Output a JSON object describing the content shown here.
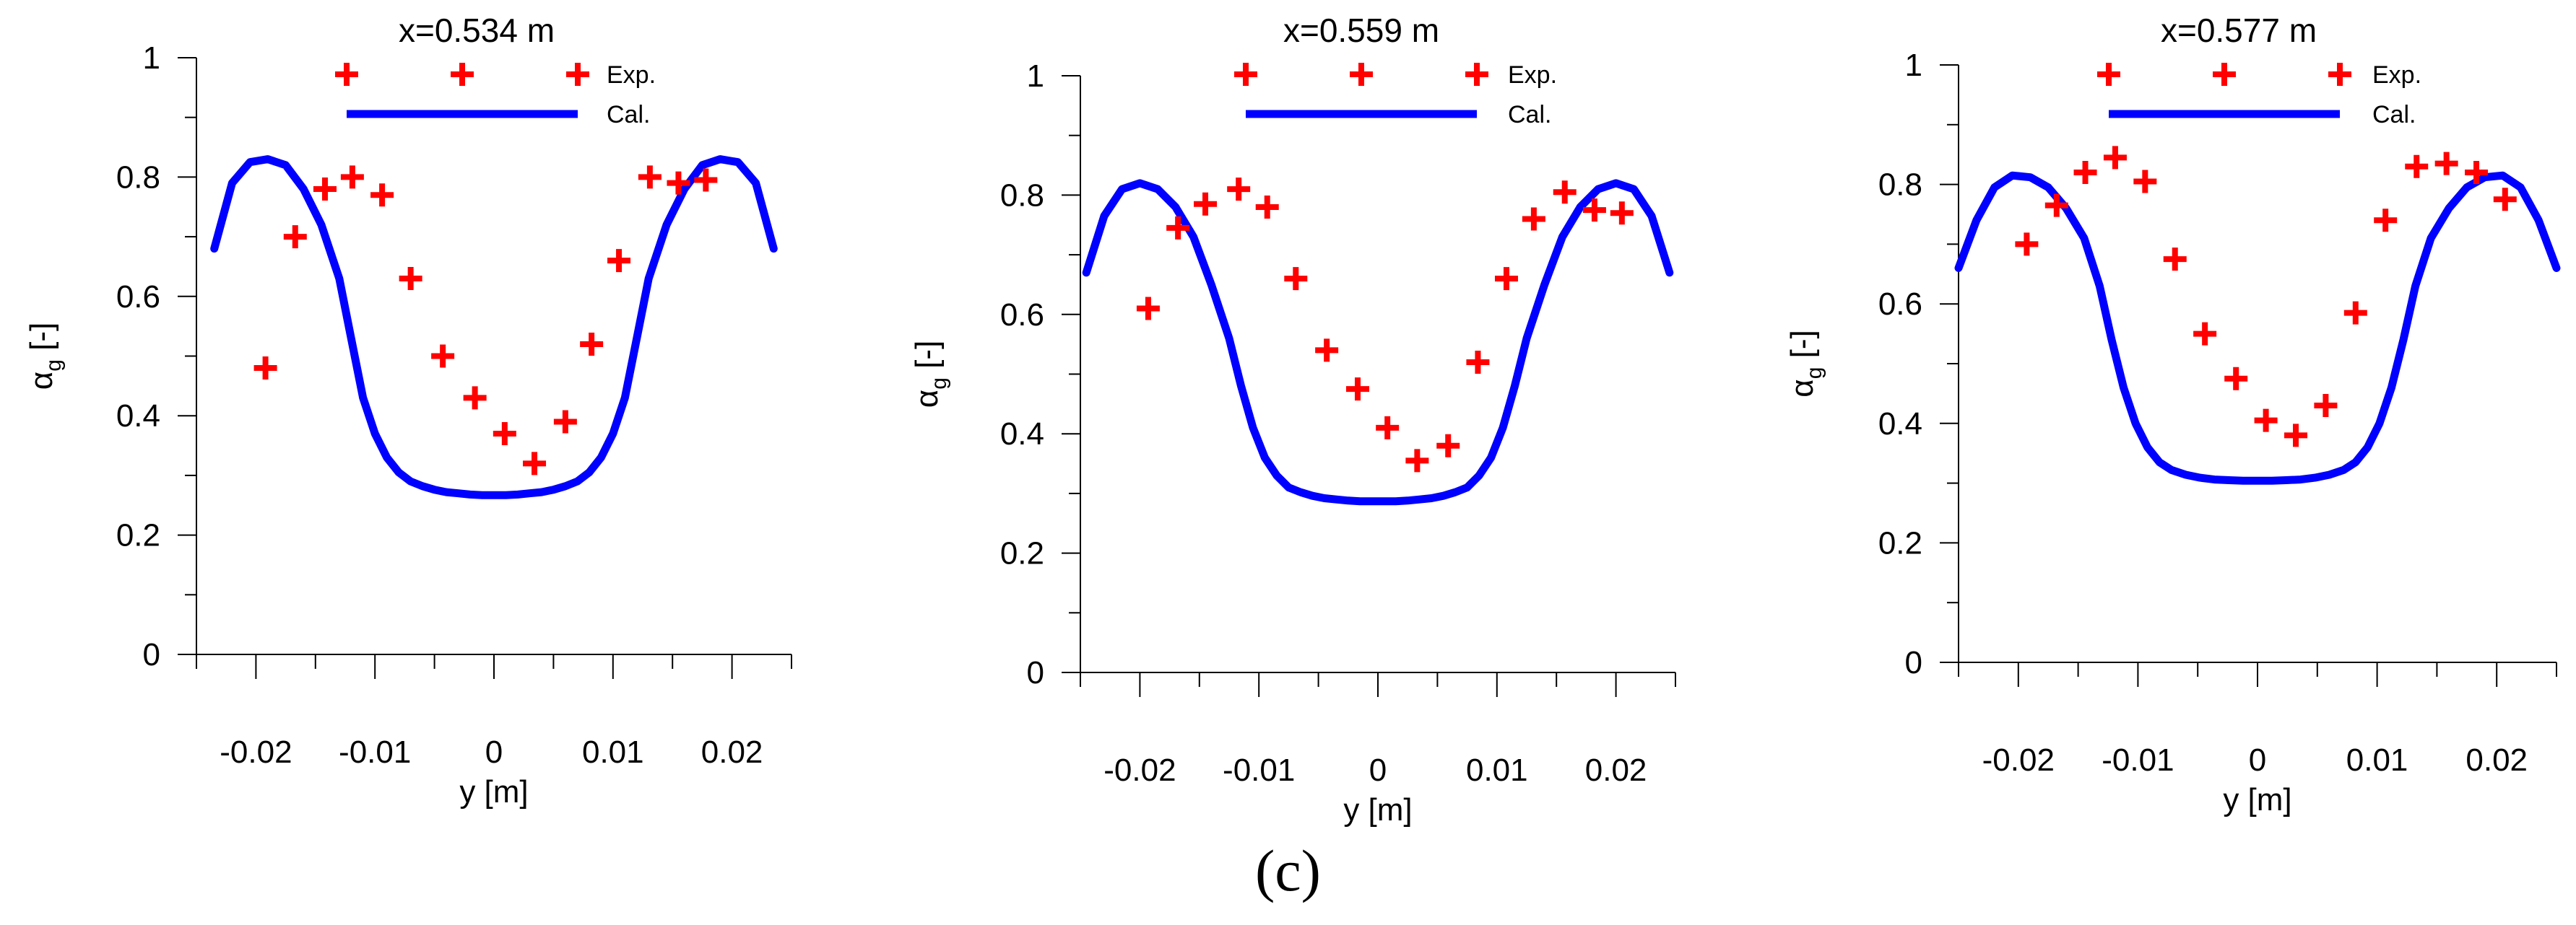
{
  "figure_label": "(c)",
  "chart_data": [
    {
      "type": "line+scatter",
      "title": "x=0.534 m",
      "xlabel": "y [m]",
      "ylabel_symbol": "α",
      "ylabel_subscript": "g",
      "ylabel_unit": "[-]",
      "xlim": [
        -0.025,
        0.025
      ],
      "ylim": [
        0,
        1
      ],
      "xticks": [
        "-0.02",
        "-0.01",
        "0",
        "0.01",
        "0.02"
      ],
      "yticks": [
        "0",
        "0.2",
        "0.4",
        "0.6",
        "0.8",
        "1"
      ],
      "legend": {
        "exp_label": "Exp.",
        "cal_label": "Cal.",
        "placement": "top-center"
      },
      "series": [
        {
          "name": "Exp.",
          "marker": "plus",
          "color": "#ff0000",
          "x": [
            -0.0192,
            -0.0167,
            -0.0142,
            -0.0119,
            -0.0094,
            -0.007,
            -0.0043,
            -0.0016,
            0.0009,
            0.0034,
            0.006,
            0.0082,
            0.0105,
            0.0131,
            0.0155,
            0.0178
          ],
          "y": [
            0.48,
            0.7,
            0.78,
            0.8,
            0.77,
            0.63,
            0.5,
            0.43,
            0.37,
            0.32,
            0.39,
            0.52,
            0.66,
            0.8,
            0.79,
            0.795
          ]
        },
        {
          "name": "Cal.",
          "marker": "line",
          "color": "#0000ff",
          "x": [
            -0.0235,
            -0.022,
            -0.0205,
            -0.019,
            -0.0175,
            -0.016,
            -0.0145,
            -0.013,
            -0.012,
            -0.011,
            -0.01,
            -0.009,
            -0.008,
            -0.007,
            -0.006,
            -0.005,
            -0.004,
            -0.003,
            -0.002,
            -0.001,
            0,
            0.001,
            0.002,
            0.003,
            0.004,
            0.005,
            0.006,
            0.007,
            0.008,
            0.009,
            0.01,
            0.011,
            0.012,
            0.013,
            0.0145,
            0.016,
            0.0175,
            0.019,
            0.0205,
            0.022,
            0.0235
          ],
          "y": [
            0.68,
            0.79,
            0.825,
            0.83,
            0.82,
            0.78,
            0.72,
            0.63,
            0.53,
            0.43,
            0.37,
            0.33,
            0.305,
            0.29,
            0.282,
            0.276,
            0.272,
            0.27,
            0.268,
            0.267,
            0.267,
            0.267,
            0.268,
            0.27,
            0.272,
            0.276,
            0.282,
            0.29,
            0.305,
            0.33,
            0.37,
            0.43,
            0.53,
            0.63,
            0.72,
            0.78,
            0.82,
            0.83,
            0.825,
            0.79,
            0.68
          ]
        }
      ]
    },
    {
      "type": "line+scatter",
      "title": "x=0.559 m",
      "xlabel": "y [m]",
      "ylabel_symbol": "α",
      "ylabel_subscript": "g",
      "ylabel_unit": "[-]",
      "xlim": [
        -0.025,
        0.025
      ],
      "ylim": [
        0,
        1
      ],
      "xticks": [
        "-0.02",
        "-0.01",
        "0",
        "0.01",
        "0.02"
      ],
      "yticks": [
        "0",
        "0.2",
        "0.4",
        "0.6",
        "0.8",
        "1"
      ],
      "legend": {
        "exp_label": "Exp.",
        "cal_label": "Cal.",
        "placement": "top-center"
      },
      "series": [
        {
          "name": "Exp.",
          "marker": "plus",
          "color": "#ff0000",
          "x": [
            -0.0193,
            -0.0168,
            -0.0145,
            -0.0117,
            -0.0093,
            -0.0069,
            -0.0043,
            -0.0017,
            0.0008,
            0.0033,
            0.0059,
            0.0084,
            0.0108,
            0.0131,
            0.0157,
            0.0182,
            0.0205
          ],
          "y": [
            0.61,
            0.745,
            0.785,
            0.81,
            0.78,
            0.66,
            0.54,
            0.475,
            0.41,
            0.355,
            0.38,
            0.52,
            0.66,
            0.76,
            0.805,
            0.775,
            0.77
          ]
        },
        {
          "name": "Cal.",
          "marker": "line",
          "color": "#0000ff",
          "x": [
            -0.0245,
            -0.023,
            -0.0215,
            -0.02,
            -0.0185,
            -0.017,
            -0.0155,
            -0.014,
            -0.0125,
            -0.0115,
            -0.0105,
            -0.0095,
            -0.0085,
            -0.0075,
            -0.0065,
            -0.0055,
            -0.0045,
            -0.0035,
            -0.0025,
            -0.0015,
            0,
            0.0015,
            0.0025,
            0.0035,
            0.0045,
            0.0055,
            0.0065,
            0.0075,
            0.0085,
            0.0095,
            0.0105,
            0.0115,
            0.0125,
            0.014,
            0.0155,
            0.017,
            0.0185,
            0.02,
            0.0215,
            0.023,
            0.0245
          ],
          "y": [
            0.67,
            0.765,
            0.81,
            0.82,
            0.81,
            0.78,
            0.73,
            0.65,
            0.56,
            0.48,
            0.41,
            0.36,
            0.33,
            0.31,
            0.302,
            0.296,
            0.292,
            0.29,
            0.288,
            0.287,
            0.287,
            0.287,
            0.288,
            0.29,
            0.292,
            0.296,
            0.302,
            0.31,
            0.33,
            0.36,
            0.41,
            0.48,
            0.56,
            0.65,
            0.73,
            0.78,
            0.81,
            0.82,
            0.81,
            0.765,
            0.67
          ]
        }
      ]
    },
    {
      "type": "line+scatter",
      "title": "x=0.577 m",
      "xlabel": "y [m]",
      "ylabel_symbol": "α",
      "ylabel_subscript": "g",
      "ylabel_unit": "[-]",
      "xlim": [
        -0.025,
        0.025
      ],
      "ylim": [
        0,
        1
      ],
      "xticks": [
        "-0.02",
        "-0.01",
        "0",
        "0.01",
        "0.02"
      ],
      "yticks": [
        "0",
        "0.2",
        "0.4",
        "0.6",
        "0.8",
        "1"
      ],
      "legend": {
        "exp_label": "Exp.",
        "cal_label": "Cal.",
        "placement": "top-center"
      },
      "series": [
        {
          "name": "Exp.",
          "marker": "plus",
          "color": "#ff0000",
          "x": [
            -0.0193,
            -0.0168,
            -0.0144,
            -0.0119,
            -0.0094,
            -0.0069,
            -0.0044,
            -0.0018,
            0.0007,
            0.0032,
            0.0057,
            0.0082,
            0.0107,
            0.0133,
            0.0158,
            0.0183,
            0.0207
          ],
          "y": [
            0.7,
            0.765,
            0.82,
            0.845,
            0.805,
            0.675,
            0.55,
            0.475,
            0.405,
            0.38,
            0.43,
            0.585,
            0.74,
            0.83,
            0.835,
            0.82,
            0.775
          ]
        },
        {
          "name": "Cal.",
          "marker": "line",
          "color": "#0000ff",
          "x": [
            -0.025,
            -0.0235,
            -0.022,
            -0.0205,
            -0.019,
            -0.0175,
            -0.016,
            -0.0145,
            -0.0132,
            -0.0122,
            -0.0112,
            -0.0102,
            -0.0092,
            -0.0082,
            -0.0072,
            -0.006,
            -0.0048,
            -0.0036,
            -0.0024,
            -0.0012,
            0,
            0.0012,
            0.0024,
            0.0036,
            0.0048,
            0.006,
            0.0072,
            0.0082,
            0.0092,
            0.0102,
            0.0112,
            0.0122,
            0.0132,
            0.0145,
            0.016,
            0.0175,
            0.019,
            0.0205,
            0.022,
            0.0235,
            0.025
          ],
          "y": [
            0.66,
            0.74,
            0.795,
            0.815,
            0.812,
            0.795,
            0.76,
            0.71,
            0.63,
            0.54,
            0.46,
            0.4,
            0.36,
            0.335,
            0.322,
            0.314,
            0.309,
            0.306,
            0.305,
            0.304,
            0.304,
            0.304,
            0.305,
            0.306,
            0.309,
            0.314,
            0.322,
            0.335,
            0.36,
            0.4,
            0.46,
            0.54,
            0.63,
            0.71,
            0.76,
            0.795,
            0.812,
            0.815,
            0.795,
            0.74,
            0.66
          ]
        }
      ]
    }
  ]
}
